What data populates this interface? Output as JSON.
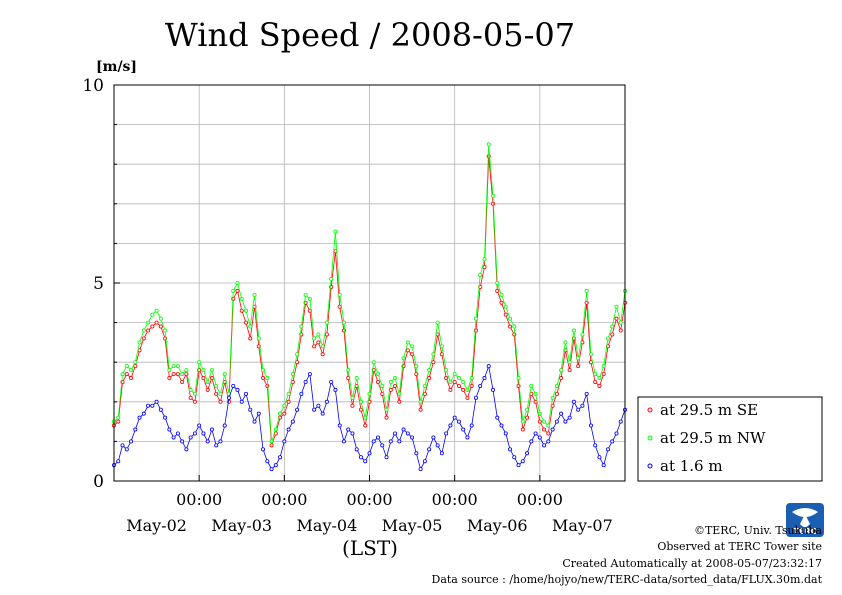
{
  "chart_data": {
    "type": "line",
    "title": "Wind Speed / 2008-05-07",
    "ylabel": "[m/s]",
    "xlabel": "(LST)",
    "ylim": [
      0,
      10
    ],
    "yticks": [
      0,
      5,
      10
    ],
    "x_tick_times": [
      "00:00",
      "00:00",
      "00:00",
      "00:00",
      "00:00"
    ],
    "x_day_labels": [
      "May-02",
      "May-03",
      "May-04",
      "May-05",
      "May-06",
      "May-07"
    ],
    "x_unit": "day index (May-01 00:00 = 0)",
    "xlim": [
      1.0,
      7.0
    ],
    "grid": true,
    "legend_position": "right",
    "series": [
      {
        "name": "at 29.5 m SE",
        "color": "#ff0000",
        "x": [
          1.0,
          1.05,
          1.1,
          1.15,
          1.2,
          1.25,
          1.3,
          1.35,
          1.4,
          1.45,
          1.5,
          1.55,
          1.6,
          1.65,
          1.7,
          1.75,
          1.8,
          1.85,
          1.9,
          1.95,
          2.0,
          2.05,
          2.1,
          2.15,
          2.2,
          2.25,
          2.3,
          2.35,
          2.4,
          2.45,
          2.5,
          2.55,
          2.6,
          2.65,
          2.7,
          2.75,
          2.8,
          2.85,
          2.9,
          2.95,
          3.0,
          3.05,
          3.1,
          3.15,
          3.2,
          3.25,
          3.3,
          3.35,
          3.4,
          3.45,
          3.5,
          3.55,
          3.6,
          3.65,
          3.7,
          3.75,
          3.8,
          3.85,
          3.9,
          3.95,
          4.0,
          4.05,
          4.1,
          4.15,
          4.2,
          4.25,
          4.3,
          4.35,
          4.4,
          4.45,
          4.5,
          4.55,
          4.6,
          4.65,
          4.7,
          4.75,
          4.8,
          4.85,
          4.9,
          4.95,
          5.0,
          5.05,
          5.1,
          5.15,
          5.2,
          5.25,
          5.3,
          5.35,
          5.4,
          5.45,
          5.5,
          5.55,
          5.6,
          5.65,
          5.7,
          5.75,
          5.8,
          5.85,
          5.9,
          5.95,
          6.0,
          6.05,
          6.1,
          6.15,
          6.2,
          6.25,
          6.3,
          6.35,
          6.4,
          6.45,
          6.5,
          6.55,
          6.6,
          6.65,
          6.7,
          6.75,
          6.8,
          6.85,
          6.9,
          6.95,
          7.0
        ],
        "values": [
          1.4,
          1.5,
          2.5,
          2.7,
          2.6,
          2.9,
          3.3,
          3.6,
          3.8,
          3.9,
          4.0,
          3.9,
          3.6,
          2.6,
          2.7,
          2.7,
          2.5,
          2.7,
          2.1,
          2.0,
          2.8,
          2.6,
          2.3,
          2.6,
          2.2,
          2.0,
          2.5,
          2.0,
          4.6,
          4.8,
          4.3,
          4.0,
          3.6,
          4.4,
          3.4,
          2.6,
          2.4,
          0.9,
          1.2,
          1.6,
          1.7,
          2.0,
          2.5,
          3.0,
          3.7,
          4.5,
          4.3,
          3.4,
          3.5,
          3.2,
          3.7,
          4.9,
          5.8,
          4.4,
          3.8,
          2.6,
          1.9,
          2.4,
          1.8,
          1.4,
          2.0,
          2.8,
          2.5,
          2.2,
          1.6,
          2.3,
          2.4,
          2.0,
          2.9,
          3.3,
          3.2,
          2.7,
          1.8,
          2.2,
          2.6,
          3.0,
          3.7,
          3.2,
          2.6,
          2.3,
          2.5,
          2.4,
          2.3,
          2.1,
          2.4,
          3.8,
          4.9,
          5.4,
          8.2,
          7.0,
          4.8,
          4.5,
          4.2,
          3.9,
          3.7,
          2.4,
          1.3,
          1.6,
          2.2,
          2.0,
          1.5,
          1.3,
          1.2,
          1.9,
          2.2,
          2.6,
          3.3,
          2.8,
          3.6,
          2.9,
          3.5,
          4.5,
          3.0,
          2.5,
          2.4,
          2.7,
          3.4,
          3.7,
          4.1,
          3.8,
          4.5
        ]
      },
      {
        "name": "at 29.5 m NW",
        "color": "#00ff00",
        "x": [
          1.0,
          1.05,
          1.1,
          1.15,
          1.2,
          1.25,
          1.3,
          1.35,
          1.4,
          1.45,
          1.5,
          1.55,
          1.6,
          1.65,
          1.7,
          1.75,
          1.8,
          1.85,
          1.9,
          1.95,
          2.0,
          2.05,
          2.1,
          2.15,
          2.2,
          2.25,
          2.3,
          2.35,
          2.4,
          2.45,
          2.5,
          2.55,
          2.6,
          2.65,
          2.7,
          2.75,
          2.8,
          2.85,
          2.9,
          2.95,
          3.0,
          3.05,
          3.1,
          3.15,
          3.2,
          3.25,
          3.3,
          3.35,
          3.4,
          3.45,
          3.5,
          3.55,
          3.6,
          3.65,
          3.7,
          3.75,
          3.8,
          3.85,
          3.9,
          3.95,
          4.0,
          4.05,
          4.1,
          4.15,
          4.2,
          4.25,
          4.3,
          4.35,
          4.4,
          4.45,
          4.5,
          4.55,
          4.6,
          4.65,
          4.7,
          4.75,
          4.8,
          4.85,
          4.9,
          4.95,
          5.0,
          5.05,
          5.1,
          5.15,
          5.2,
          5.25,
          5.3,
          5.35,
          5.4,
          5.45,
          5.5,
          5.55,
          5.6,
          5.65,
          5.7,
          5.75,
          5.8,
          5.85,
          5.9,
          5.95,
          6.0,
          6.05,
          6.1,
          6.15,
          6.2,
          6.25,
          6.3,
          6.35,
          6.4,
          6.45,
          6.5,
          6.55,
          6.6,
          6.65,
          6.7,
          6.75,
          6.8,
          6.85,
          6.9,
          6.95,
          7.0
        ],
        "values": [
          1.5,
          1.6,
          2.7,
          2.9,
          2.8,
          3.0,
          3.5,
          3.8,
          4.0,
          4.2,
          4.3,
          4.1,
          3.8,
          2.8,
          2.9,
          2.9,
          2.7,
          2.8,
          2.3,
          2.2,
          3.0,
          2.8,
          2.5,
          2.8,
          2.4,
          2.2,
          2.7,
          2.2,
          4.8,
          5.0,
          4.6,
          4.3,
          3.9,
          4.7,
          3.6,
          2.8,
          2.6,
          1.0,
          1.3,
          1.7,
          1.9,
          2.2,
          2.7,
          3.2,
          3.9,
          4.7,
          4.6,
          3.6,
          3.7,
          3.4,
          4.0,
          5.1,
          6.3,
          4.7,
          4.0,
          2.8,
          2.1,
          2.6,
          2.0,
          1.6,
          2.2,
          3.0,
          2.7,
          2.4,
          1.8,
          2.5,
          2.6,
          2.2,
          3.1,
          3.5,
          3.4,
          2.9,
          2.0,
          2.4,
          2.8,
          3.2,
          4.0,
          3.4,
          2.8,
          2.5,
          2.7,
          2.6,
          2.5,
          2.3,
          2.6,
          4.1,
          5.2,
          5.6,
          8.5,
          7.2,
          5.0,
          4.7,
          4.4,
          4.1,
          3.9,
          2.6,
          1.5,
          1.8,
          2.4,
          2.2,
          1.7,
          1.5,
          1.4,
          2.1,
          2.4,
          2.8,
          3.5,
          3.0,
          3.8,
          3.1,
          3.7,
          4.8,
          3.2,
          2.7,
          2.6,
          2.9,
          3.6,
          3.9,
          4.4,
          4.0,
          4.8
        ]
      },
      {
        "name": "at 1.6 m",
        "color": "#0000ff",
        "x": [
          1.0,
          1.05,
          1.1,
          1.15,
          1.2,
          1.25,
          1.3,
          1.35,
          1.4,
          1.45,
          1.5,
          1.55,
          1.6,
          1.65,
          1.7,
          1.75,
          1.8,
          1.85,
          1.9,
          1.95,
          2.0,
          2.05,
          2.1,
          2.15,
          2.2,
          2.25,
          2.3,
          2.35,
          2.4,
          2.45,
          2.5,
          2.55,
          2.6,
          2.65,
          2.7,
          2.75,
          2.8,
          2.85,
          2.9,
          2.95,
          3.0,
          3.05,
          3.1,
          3.15,
          3.2,
          3.25,
          3.3,
          3.35,
          3.4,
          3.45,
          3.5,
          3.55,
          3.6,
          3.65,
          3.7,
          3.75,
          3.8,
          3.85,
          3.9,
          3.95,
          4.0,
          4.05,
          4.1,
          4.15,
          4.2,
          4.25,
          4.3,
          4.35,
          4.4,
          4.45,
          4.5,
          4.55,
          4.6,
          4.65,
          4.7,
          4.75,
          4.8,
          4.85,
          4.9,
          4.95,
          5.0,
          5.05,
          5.1,
          5.15,
          5.2,
          5.25,
          5.3,
          5.35,
          5.4,
          5.45,
          5.5,
          5.55,
          5.6,
          5.65,
          5.7,
          5.75,
          5.8,
          5.85,
          5.9,
          5.95,
          6.0,
          6.05,
          6.1,
          6.15,
          6.2,
          6.25,
          6.3,
          6.35,
          6.4,
          6.45,
          6.5,
          6.55,
          6.6,
          6.65,
          6.7,
          6.75,
          6.8,
          6.85,
          6.9,
          6.95,
          7.0
        ],
        "values": [
          0.4,
          0.5,
          0.9,
          0.8,
          1.0,
          1.3,
          1.6,
          1.7,
          1.9,
          1.9,
          2.0,
          1.8,
          1.6,
          1.3,
          1.1,
          1.2,
          1.0,
          0.8,
          1.1,
          1.2,
          1.4,
          1.2,
          1.0,
          1.3,
          0.9,
          1.0,
          1.4,
          2.1,
          2.4,
          2.3,
          2.0,
          2.2,
          1.8,
          1.5,
          1.7,
          0.8,
          0.5,
          0.3,
          0.4,
          0.6,
          1.0,
          1.3,
          1.5,
          1.8,
          2.2,
          2.5,
          2.7,
          1.8,
          1.9,
          1.7,
          2.0,
          2.5,
          2.3,
          1.4,
          1.0,
          1.3,
          1.2,
          0.8,
          0.6,
          0.5,
          0.7,
          1.0,
          1.1,
          0.9,
          0.6,
          1.0,
          1.2,
          1.0,
          1.3,
          1.2,
          1.1,
          0.7,
          0.3,
          0.5,
          0.8,
          1.1,
          0.9,
          0.7,
          1.2,
          1.4,
          1.6,
          1.5,
          1.3,
          1.1,
          1.4,
          2.1,
          2.4,
          2.6,
          2.9,
          2.3,
          1.6,
          1.4,
          1.2,
          0.8,
          0.6,
          0.4,
          0.5,
          0.7,
          1.0,
          1.2,
          1.1,
          0.9,
          1.0,
          1.3,
          1.5,
          1.7,
          1.5,
          1.6,
          2.0,
          1.8,
          1.9,
          2.2,
          1.4,
          0.9,
          0.6,
          0.4,
          0.8,
          1.0,
          1.2,
          1.5,
          1.8
        ]
      }
    ]
  },
  "footer": {
    "copyright": "©TERC, Univ. Tsukuba",
    "observed": "Observed at TERC Tower site",
    "created": "Created Automatically at 2008-05-07/23:32:17",
    "source": "Data source : /home/hojyo/new/TERC-data/sorted_data/FLUX.30m.dat",
    "logo_text": "TERC"
  }
}
